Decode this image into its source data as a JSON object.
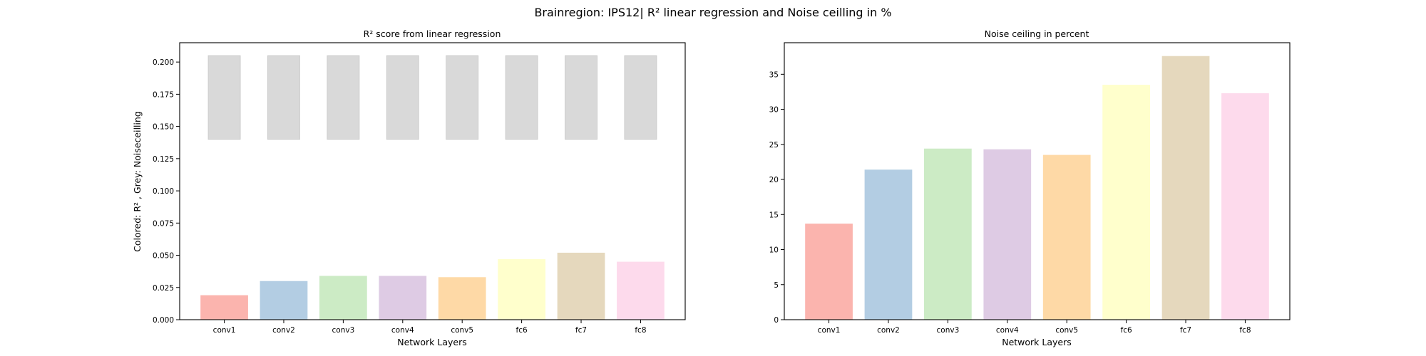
{
  "figure": {
    "suptitle": "Brainregion: IPS12| R² linear regression and Noise ceilling in %"
  },
  "chart_data": [
    {
      "type": "bar",
      "title": "R² score from linear regression",
      "xlabel": "Network Layers",
      "ylabel": "Colored: R² , Grey: Noiseceilling",
      "categories": [
        "conv1",
        "conv2",
        "conv3",
        "conv4",
        "conv5",
        "fc6",
        "fc7",
        "fc8"
      ],
      "series": [
        {
          "values": [
            0.019,
            0.03,
            0.034,
            0.034,
            0.033,
            0.047,
            0.052,
            0.045
          ]
        },
        {
          "values": [
            0.205,
            0.205,
            0.205,
            0.205,
            0.205,
            0.205,
            0.205,
            0.205
          ],
          "bottom": [
            0.14,
            0.14,
            0.14,
            0.14,
            0.14,
            0.14,
            0.14,
            0.14
          ]
        }
      ],
      "ylim": [
        0,
        0.215
      ],
      "yticks": [
        0.0,
        0.025,
        0.05,
        0.075,
        0.1,
        0.125,
        0.15,
        0.175,
        0.2
      ],
      "ytick_labels": [
        "0.000",
        "0.025",
        "0.050",
        "0.075",
        "0.100",
        "0.125",
        "0.150",
        "0.175",
        "0.200"
      ],
      "grid": false
    },
    {
      "type": "bar",
      "title": "Noise ceiling in percent",
      "xlabel": "Network Layers",
      "ylabel": "",
      "categories": [
        "conv1",
        "conv2",
        "conv3",
        "conv4",
        "conv5",
        "fc6",
        "fc7",
        "fc8"
      ],
      "series": [
        {
          "values": [
            13.7,
            21.4,
            24.4,
            24.3,
            23.5,
            33.5,
            37.6,
            32.3
          ]
        }
      ],
      "ylim": [
        0,
        39.5
      ],
      "yticks": [
        0,
        5,
        10,
        15,
        20,
        25,
        30,
        35
      ],
      "ytick_labels": [
        "0",
        "5",
        "10",
        "15",
        "20",
        "25",
        "30",
        "35"
      ],
      "grid": false
    }
  ],
  "colors": {
    "bars": [
      "#fbb4ae",
      "#b3cde3",
      "#ccebc5",
      "#decbe4",
      "#fed9a6",
      "#ffffcc",
      "#e5d8bd",
      "#fddaec"
    ],
    "noise_ceiling": "#d9d9d9",
    "noise_ceiling_edge": "#c8c8c8"
  }
}
